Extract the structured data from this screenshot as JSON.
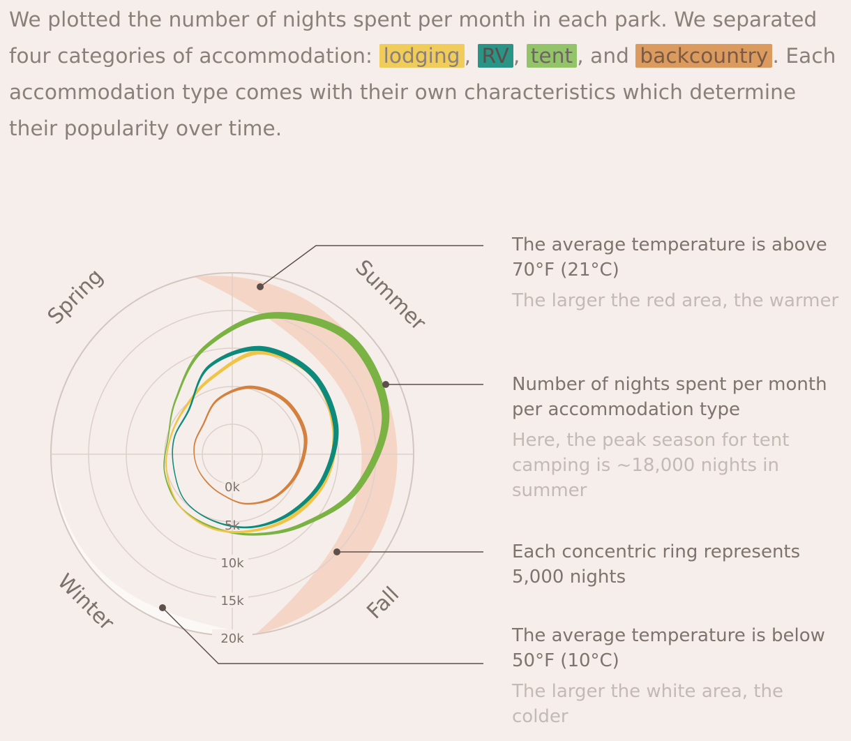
{
  "intro": {
    "text_before": "We plotted the number of nights spent per month in each park. We separated four categories of accommodation: ",
    "lodging": "lodging",
    "sep1": ", ",
    "rv": "RV",
    "sep2": ", ",
    "tent": "tent",
    "sep3": ", and ",
    "backcountry": "backcountry",
    "text_after": ". Each accommodation type comes with their own characteristics which determine their popularity over time."
  },
  "seasons": {
    "spring": "Spring",
    "summer": "Summer",
    "fall": "Fall",
    "winter": "Winter"
  },
  "rings": [
    "0k",
    "5k",
    "10k",
    "15k",
    "20k"
  ],
  "annotations": [
    {
      "main": "The average temperature is above 70°F (21°C)",
      "sub": "The larger the red area, the warmer"
    },
    {
      "main": "Number of nights spent per month per accommodation type",
      "sub": "Here, the peak season for tent camping is ~18,000 nights in summer"
    },
    {
      "main": "Each concentric ring represents 5,000 nights",
      "sub": ""
    },
    {
      "main": "The average temperature is below 50°F (10°C)",
      "sub": "The larger the white area, the colder"
    }
  ],
  "colors": {
    "lodging": "#f0c445",
    "rv": "#0e8a7c",
    "tent": "#7ab343",
    "backcountry": "#d4803e",
    "warm_area": "#f5d6c6",
    "cold_area": "#fbf8f6",
    "ring": "#ddd0ca",
    "leader": "#5d4f4a"
  },
  "series": [
    {
      "name": "tent",
      "r": [
        5800,
        5300,
        4800,
        6500,
        10500,
        15000,
        17800,
        17000,
        13200,
        9200,
        7000,
        6000
      ],
      "rw": [
        0.35,
        0.3,
        0.3,
        0.5,
        1.0,
        1.6,
        2.0,
        1.9,
        1.6,
        1.0,
        0.6,
        0.4
      ]
    },
    {
      "name": "lodging",
      "r": [
        5800,
        5000,
        4500,
        4800,
        6500,
        10000,
        11000,
        10000,
        8800,
        7500,
        6500,
        6200
      ],
      "rw": [
        0.3,
        0.3,
        0.35,
        0.55,
        0.8,
        1.2,
        1.3,
        1.25,
        1.1,
        0.9,
        0.6,
        0.4
      ]
    },
    {
      "name": "RV",
      "r": [
        4800,
        4000,
        4000,
        4200,
        8000,
        10500,
        11000,
        10200,
        8500,
        7000,
        6000,
        5200
      ],
      "rw": [
        0.25,
        0.25,
        0.3,
        0.45,
        0.8,
        1.2,
        1.3,
        1.25,
        1.05,
        0.85,
        0.5,
        0.35
      ]
    },
    {
      "name": "backcountry",
      "r": [
        1000,
        1000,
        1200,
        1500,
        3500,
        5200,
        6000,
        6000,
        5000,
        4000,
        2800,
        1500
      ],
      "rw": [
        0.3,
        0.25,
        0.3,
        0.4,
        0.6,
        0.8,
        0.9,
        0.9,
        0.8,
        0.6,
        0.4,
        0.3
      ]
    }
  ]
}
